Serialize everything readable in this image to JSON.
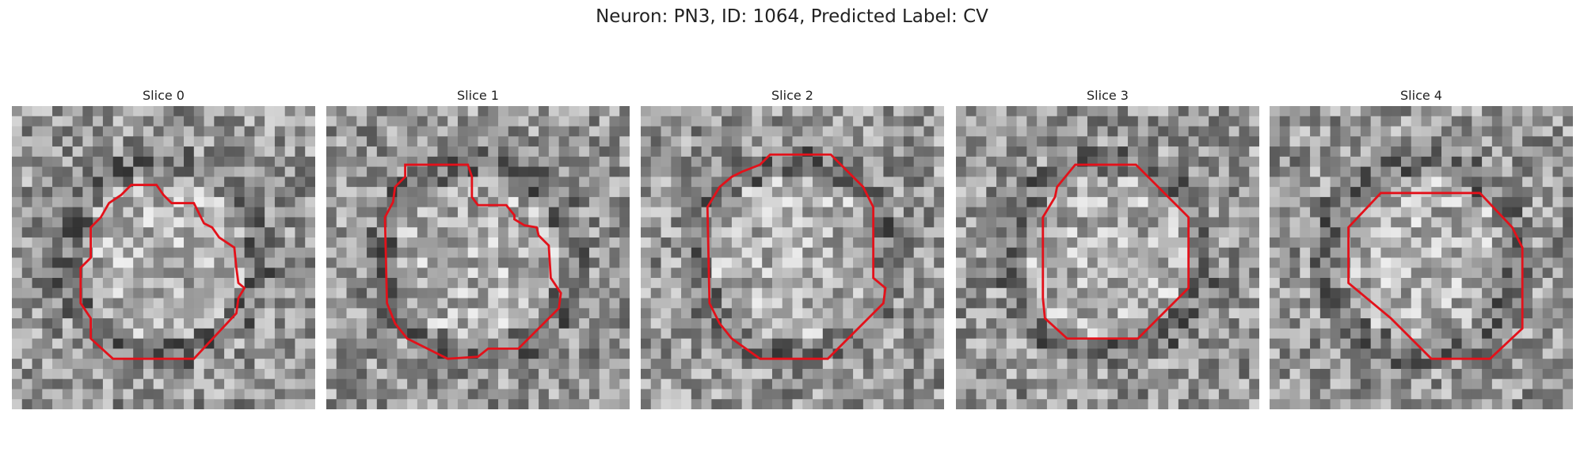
{
  "title": "Neuron: PN3, ID: 1064, Predicted Label: CV",
  "panels": [
    {
      "title": "Slice 0"
    },
    {
      "title": "Slice 1"
    },
    {
      "title": "Slice 2"
    },
    {
      "title": "Slice 3"
    },
    {
      "title": "Slice 4"
    }
  ]
}
